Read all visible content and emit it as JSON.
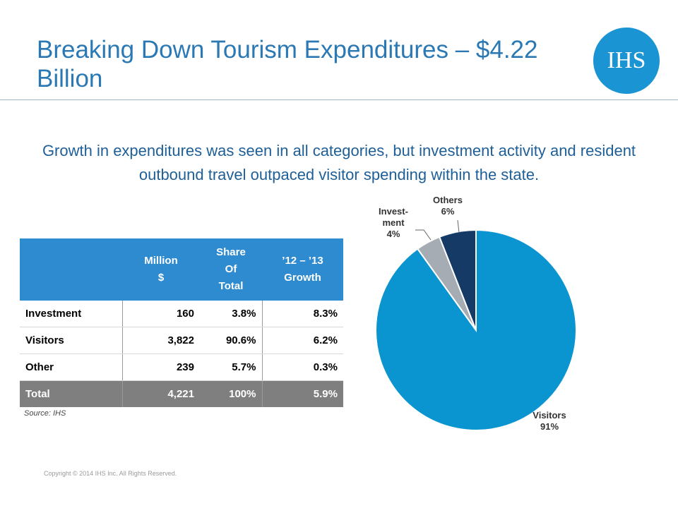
{
  "header": {
    "title": "Breaking Down Tourism Expenditures – $4.22 Billion",
    "logo_text": "IHS",
    "brand_color": "#1a94d3"
  },
  "subtitle": "Growth in expenditures was seen in all categories, but investment activity and resident outbound travel outpaced visitor spending within the state.",
  "table": {
    "headers": [
      "",
      "Million\n$",
      "Share\nOf\nTotal",
      "’12 – ’13\nGrowth"
    ],
    "rows": [
      [
        "Investment",
        "160",
        "3.8%",
        "8.3%"
      ],
      [
        "Visitors",
        "3,822",
        "90.6%",
        "6.2%"
      ],
      [
        "Other",
        "239",
        "5.7%",
        "0.3%"
      ]
    ],
    "total": [
      "Total",
      "4,221",
      "100%",
      "5.9%"
    ]
  },
  "source": "Source: IHS",
  "copyright": "Copyright © 2014 IHS Inc. All Rights Reserved.",
  "chart_data": {
    "type": "pie",
    "slices": [
      {
        "label": [
          "Visitors",
          "91%"
        ],
        "value": 91,
        "color": "#0a94d0"
      },
      {
        "label": [
          "Invest-",
          "ment",
          "4%"
        ],
        "value": 4,
        "color": "#a6acb3"
      },
      {
        "label": [
          "Others",
          "6%"
        ],
        "value": 6,
        "color": "#163a66"
      }
    ]
  }
}
